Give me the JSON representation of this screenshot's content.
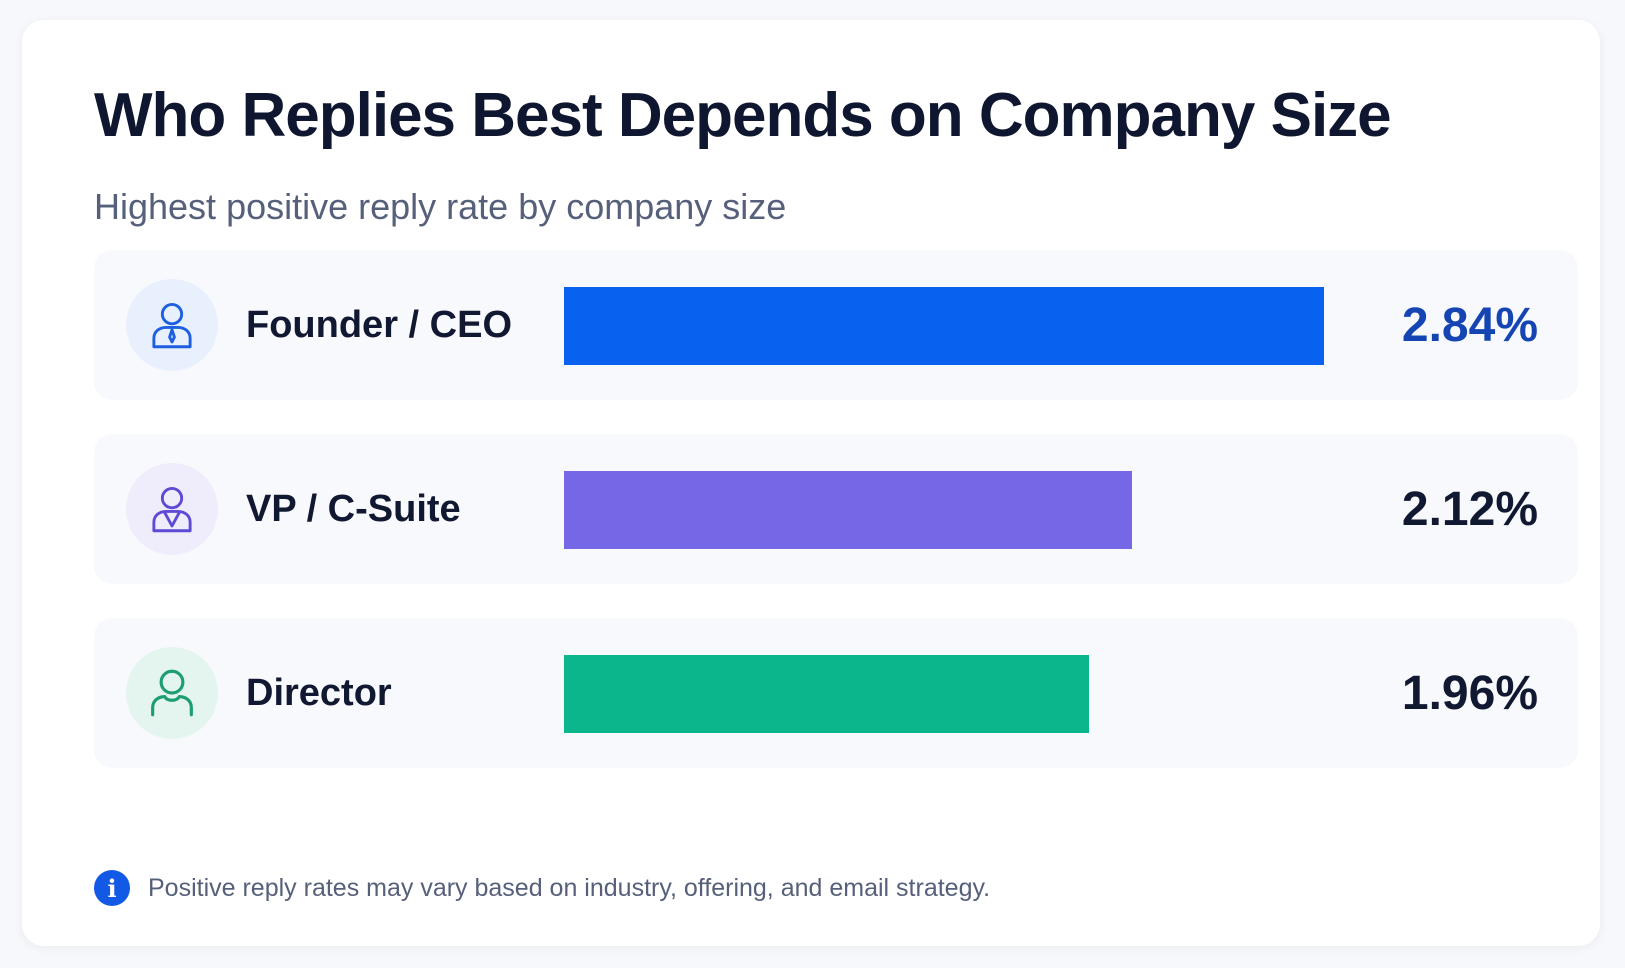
{
  "chart_data": {
    "type": "bar",
    "orientation": "horizontal",
    "title": "Who Replies Best Depends on Company Size",
    "subtitle": "Highest positive reply rate by company size",
    "categories": [
      "Founder / CEO",
      "VP / C-Suite",
      "Director"
    ],
    "values": [
      2.84,
      2.12,
      1.96
    ],
    "value_labels": [
      "2.84%",
      "2.12%",
      "1.96%"
    ],
    "unit": "%",
    "xlim": [
      0,
      3.25
    ],
    "grid": false,
    "legend": "none",
    "colors": [
      "#0861ef",
      "#7667e6",
      "#0cb68c"
    ],
    "value_label_colors": [
      "#1445b3",
      "#111831",
      "#111831"
    ],
    "icons": [
      "founder-ceo-icon",
      "vp-csuite-icon",
      "director-icon"
    ],
    "avatar_backgrounds": [
      "#e9f0fd",
      "#efedfb",
      "#e4f5ef"
    ],
    "icon_strokes": [
      "#1d5fe0",
      "#5d4bd6",
      "#1c9d72"
    ]
  },
  "footnote": {
    "icon": "info-icon",
    "text": "Positive reply rates may vary based on industry, offering, and email strategy."
  }
}
